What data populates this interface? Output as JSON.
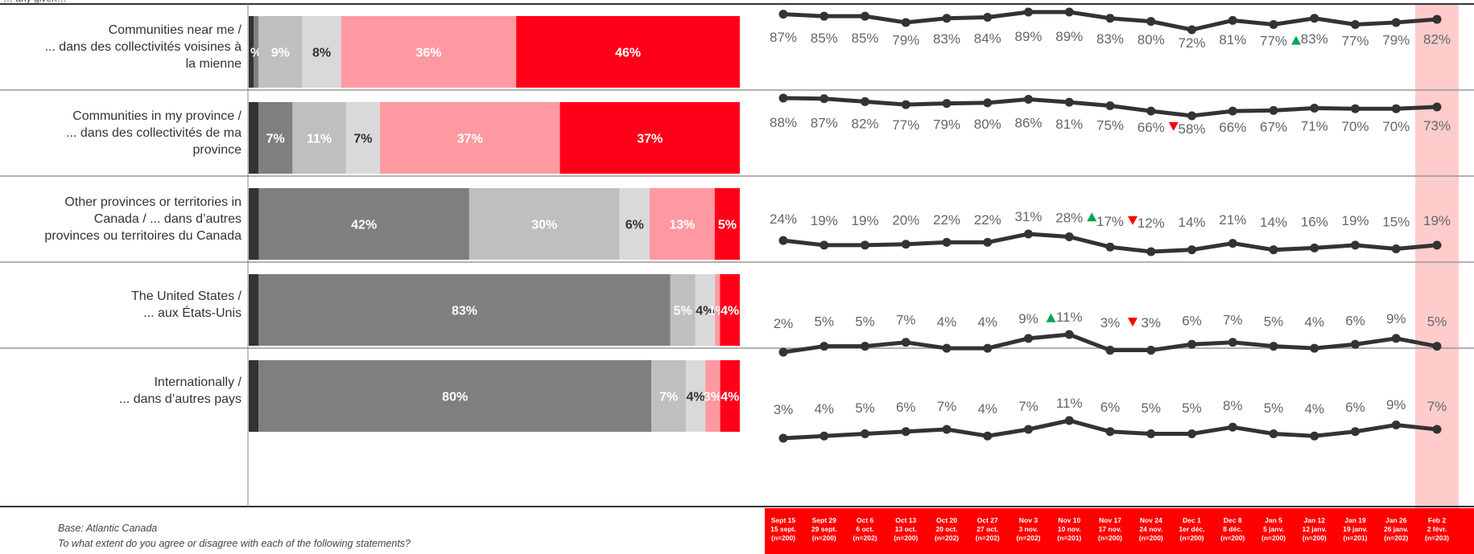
{
  "top_clip_text": "… any given…",
  "rows": [
    {
      "label_lines": [
        "Communities near me /",
        "... dans des collectivités voisines à",
        "la mienne"
      ]
    },
    {
      "label_lines": [
        "Communities in my province /",
        "... dans des collectivités de ma",
        "province"
      ]
    },
    {
      "label_lines": [
        "Other provinces or territories in",
        "Canada / ... dans d’autres",
        "provinces ou territoires du Canada"
      ]
    },
    {
      "label_lines": [
        "The United States /",
        "... aux États-Unis"
      ]
    },
    {
      "label_lines": [
        "Internationally /",
        "... dans d’autres pays"
      ]
    }
  ],
  "footnotes": {
    "base": "Base: Atlantic Canada",
    "question": "To what extent do you agree or disagree with each of the following statements?"
  },
  "dates": [
    {
      "en": "Sept 15",
      "fr": "15 sept.",
      "n": "(n=200)"
    },
    {
      "en": "Sept 29",
      "fr": "29 sept.",
      "n": "(n=200)"
    },
    {
      "en": "Oct 6",
      "fr": "6 oct.",
      "n": "(n=202)"
    },
    {
      "en": "Oct 13",
      "fr": "13 oct.",
      "n": "(n=200)"
    },
    {
      "en": "Oct 20",
      "fr": "20 oct.",
      "n": "(n=202)"
    },
    {
      "en": "Oct 27",
      "fr": "27 oct.",
      "n": "(n=202)"
    },
    {
      "en": "Nov 3",
      "fr": "3 nov.",
      "n": "(n=202)"
    },
    {
      "en": "Nov 10",
      "fr": "10 nov.",
      "n": "(n=201)"
    },
    {
      "en": "Nov 17",
      "fr": "17 nov.",
      "n": "(n=200)"
    },
    {
      "en": "Nov 24",
      "fr": "24 nov.",
      "n": "(n=200)"
    },
    {
      "en": "Dec 1",
      "fr": "1er déc.",
      "n": "(n=200)"
    },
    {
      "en": "Dec 8",
      "fr": "8 déc.",
      "n": "(n=200)"
    },
    {
      "en": "Jan 5",
      "fr": "5 janv.",
      "n": "(n=200)"
    },
    {
      "en": "Jan 12",
      "fr": "12 janv.",
      "n": "(n=200)"
    },
    {
      "en": "Jan 19",
      "fr": "19 janv.",
      "n": "(n=201)"
    },
    {
      "en": "Jan 26",
      "fr": "26 janv.",
      "n": "(n=202)"
    },
    {
      "en": "Feb 2",
      "fr": "2 févr.",
      "n": "(n=203)"
    }
  ],
  "colors": {
    "seg": [
      "#333333",
      "#7f7f7f",
      "#bfbfbf",
      "#d9d9d9",
      "#ff99a1",
      "#ff0019"
    ],
    "seg_text": [
      "#ffffff",
      "#ffffff",
      "#ffffff",
      "#333333",
      "#ffffff",
      "#ffffff"
    ],
    "line": "#333333",
    "value_text": "#666666",
    "up_arrow": "#00a651",
    "down_arrow": "#ff0000",
    "highlight": "#ffcccc",
    "date_band": "#ff0000"
  },
  "chart_data": [
    {
      "type": "bar",
      "orientation": "horizontal",
      "stacked": true,
      "xlim": [
        0,
        100
      ],
      "rows": [
        {
          "segments": [
            1,
            1,
            9,
            8,
            36,
            46
          ],
          "labels": [
            "",
            "%",
            "9%",
            "8%",
            "36%",
            "46%"
          ]
        },
        {
          "segments": [
            2,
            7,
            11,
            7,
            37,
            37
          ],
          "labels": [
            "",
            "7%",
            "11%",
            "7%",
            "37%",
            "37%"
          ]
        },
        {
          "segments": [
            2,
            42,
            30,
            6,
            13,
            5
          ],
          "labels": [
            "",
            "42%",
            "30%",
            "6%",
            "13%",
            "5%"
          ]
        },
        {
          "segments": [
            2,
            83,
            5,
            4,
            1,
            4
          ],
          "labels": [
            "",
            "83%",
            "5%",
            "4%",
            "1%",
            "4%"
          ]
        },
        {
          "segments": [
            2,
            80,
            7,
            4,
            3,
            4
          ],
          "labels": [
            "",
            "80%",
            "7%",
            "4%",
            "3%",
            "4%"
          ]
        }
      ]
    },
    {
      "type": "line",
      "x": [
        "Sept 15",
        "Sept 29",
        "Oct 6",
        "Oct 13",
        "Oct 20",
        "Oct 27",
        "Nov 3",
        "Nov 10",
        "Nov 17",
        "Nov 24",
        "Dec 1",
        "Dec 8",
        "Jan 5",
        "Jan 12",
        "Jan 19",
        "Jan 26",
        "Feb 2"
      ],
      "series": [
        {
          "values": [
            87,
            85,
            85,
            79,
            83,
            84,
            89,
            89,
            83,
            80,
            72,
            81,
            77,
            83,
            77,
            79,
            82
          ],
          "markers": {
            "12": "up"
          }
        },
        {
          "values": [
            88,
            87,
            82,
            77,
            79,
            80,
            86,
            81,
            75,
            66,
            58,
            66,
            67,
            71,
            70,
            70,
            73
          ],
          "markers": {
            "9": "down"
          }
        },
        {
          "values": [
            24,
            19,
            19,
            20,
            22,
            22,
            31,
            28,
            17,
            12,
            14,
            21,
            14,
            16,
            19,
            15,
            19
          ],
          "markers": {
            "7": "up",
            "8": "down"
          }
        },
        {
          "values": [
            2,
            5,
            5,
            7,
            4,
            4,
            9,
            11,
            3,
            3,
            6,
            7,
            5,
            4,
            6,
            9,
            5
          ],
          "markers": {
            "6": "up",
            "8": "down"
          }
        },
        {
          "values": [
            3,
            4,
            5,
            6,
            7,
            4,
            7,
            11,
            6,
            5,
            5,
            8,
            5,
            4,
            6,
            9,
            7
          ],
          "markers": {}
        }
      ],
      "highlighted_point": "Feb 2"
    }
  ]
}
